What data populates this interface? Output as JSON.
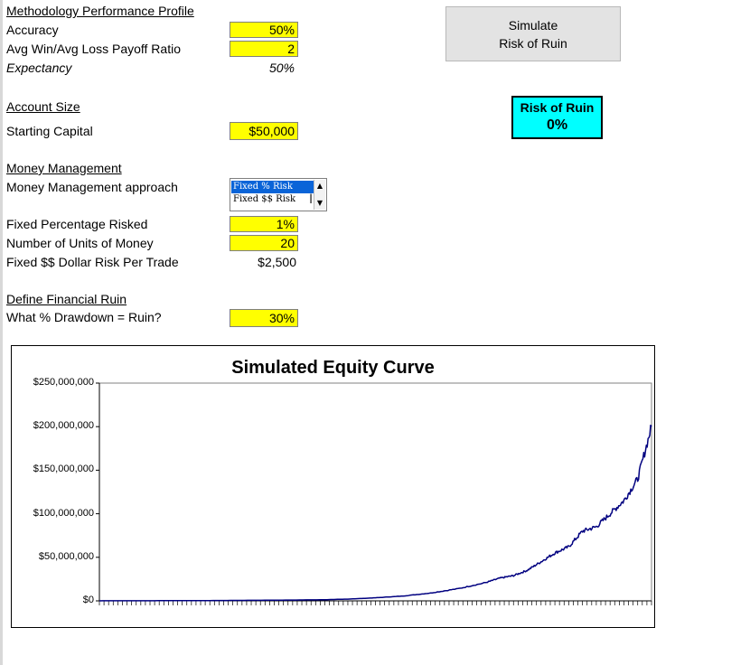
{
  "methodology": {
    "heading": "Methodology Performance Profile",
    "accuracy_label": "Accuracy",
    "accuracy_value": "50%",
    "payoff_label": "Avg Win/Avg Loss Payoff Ratio",
    "payoff_value": "2",
    "expectancy_label": "Expectancy",
    "expectancy_value": "50%"
  },
  "account": {
    "heading": "Account Size",
    "capital_label": "Starting Capital",
    "capital_value": "$50,000"
  },
  "money_management": {
    "heading": "Money Management",
    "approach_label": "Money Management approach",
    "options": [
      "Fixed % Risk",
      "Fixed $$ Risk"
    ],
    "selected": "Fixed % Risk",
    "fixed_pct_label": "Fixed Percentage Risked",
    "fixed_pct_value": "1%",
    "units_label": "Number of Units of Money",
    "units_value": "20",
    "dollar_risk_label": "Fixed $$ Dollar Risk Per Trade",
    "dollar_risk_value": "$2,500"
  },
  "ruin": {
    "heading": "Define Financial Ruin",
    "drawdown_label": "What % Drawdown = Ruin?",
    "drawdown_value": "30%"
  },
  "simulate_button": {
    "line1": "Simulate",
    "line2": "Risk of Ruin"
  },
  "risk_of_ruin": {
    "label": "Risk of Ruin",
    "value": "0%"
  },
  "colors": {
    "input_fill": "#ffff00",
    "ror_fill": "#00ffff",
    "series": "#000080"
  },
  "chart_data": {
    "type": "line",
    "title": "Simulated Equity Curve",
    "xlabel": "",
    "ylabel": "",
    "ylim": [
      0,
      250000000
    ],
    "y_ticks": [
      "$250,000,000",
      "$200,000,000",
      "$150,000,000",
      "$100,000,000",
      "$50,000,000",
      "$0"
    ],
    "y_tick_values": [
      250000000,
      200000000,
      150000000,
      100000000,
      50000000,
      0
    ],
    "grid": false,
    "legend": "none",
    "x_count": 1000,
    "series": [
      {
        "points": [
          [
            0,
            50000
          ],
          [
            100,
            150000
          ],
          [
            200,
            350000
          ],
          [
            300,
            700000
          ],
          [
            400,
            1200000
          ],
          [
            450,
            2000000
          ],
          [
            500,
            3500000
          ],
          [
            550,
            5500000
          ],
          [
            600,
            9000000
          ],
          [
            650,
            14000000
          ],
          [
            700,
            21000000
          ],
          [
            725,
            26000000
          ],
          [
            750,
            29000000
          ],
          [
            775,
            35000000
          ],
          [
            800,
            45000000
          ],
          [
            825,
            55000000
          ],
          [
            850,
            62000000
          ],
          [
            875,
            80000000
          ],
          [
            900,
            85000000
          ],
          [
            925,
            100000000
          ],
          [
            950,
            115000000
          ],
          [
            975,
            140000000
          ],
          [
            1000,
            200000000
          ]
        ]
      }
    ]
  }
}
